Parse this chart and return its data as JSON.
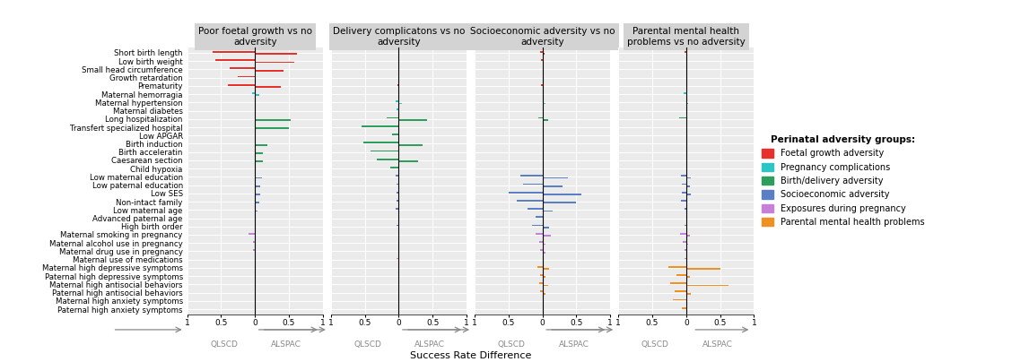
{
  "y_labels": [
    "Short birth length",
    "Low birth weight",
    "Small head circumference",
    "Growth retardation",
    "Prematurity",
    "Maternal hemorragia",
    "Maternal hypertension",
    "Maternal diabetes",
    "Long hospitalization",
    "Transfert specialized hospital",
    "Low APGAR",
    "Birth induction",
    "Birth acceleratin",
    "Caesarean section",
    "Child hypoxia",
    "Low maternal education",
    "Low paternal education",
    "Low SES",
    "Non-intact family",
    "Low maternal age",
    "Advanced paternal age",
    "High birth order",
    "Maternal smoking in pregnancy",
    "Maternal alcohol use in pregnancy",
    "Maternal drug use in pregnancy",
    "Maternal use of medications",
    "Maternal high depressive symptoms",
    "Paternal high depressive symptoms",
    "Maternal high antisocial behaviors",
    "Paternal high antisocial behaviors",
    "Maternal high anxiety symptoms",
    "Paternal high anxiety symptoms"
  ],
  "panel_titles": [
    "Poor foetal growth vs no\nadversity",
    "Delivery complicatons vs no\nadversity",
    "Socioeconomic adversity vs no\nadversity",
    "Parental mental health\nproblems vs no adversity"
  ],
  "colors": {
    "foetal": "#E8312A",
    "pregnancy": "#2BC5C5",
    "birth": "#2D9E5B",
    "socio": "#5B7FC4",
    "exposure": "#C87FD8",
    "parental": "#F09020"
  },
  "group_assignment": [
    "foetal",
    "foetal",
    "foetal",
    "foetal",
    "foetal",
    "pregnancy",
    "pregnancy",
    "pregnancy",
    "birth",
    "birth",
    "birth",
    "birth",
    "birth",
    "birth",
    "birth",
    "socio",
    "socio",
    "socio",
    "socio",
    "socio",
    "socio",
    "socio",
    "exposure",
    "exposure",
    "exposure",
    "exposure",
    "parental",
    "parental",
    "parental",
    "parental",
    "parental",
    "parental"
  ],
  "panel1": {
    "qlscd": [
      0.62,
      0.58,
      0.38,
      0.25,
      0.4,
      0.04,
      0.0,
      0.0,
      0.0,
      0.0,
      0.0,
      0.0,
      0.0,
      0.0,
      0.0,
      0.0,
      0.0,
      0.0,
      0.0,
      0.0,
      0.0,
      0.0,
      0.1,
      0.03,
      0.03,
      0.0,
      0.0,
      0.0,
      0.0,
      0.0,
      0.0,
      0.0
    ],
    "alspac": [
      0.62,
      0.58,
      0.42,
      0.0,
      0.38,
      0.06,
      0.0,
      0.0,
      0.52,
      0.5,
      0.0,
      0.18,
      0.12,
      0.12,
      0.0,
      0.1,
      0.08,
      0.08,
      0.06,
      0.04,
      0.0,
      0.0,
      0.0,
      0.0,
      0.0,
      0.0,
      0.0,
      0.0,
      0.0,
      0.0,
      0.0,
      0.0
    ]
  },
  "panel2": {
    "qlscd": [
      0.0,
      0.0,
      0.0,
      0.0,
      0.02,
      0.0,
      0.04,
      0.03,
      0.18,
      0.55,
      0.1,
      0.52,
      0.42,
      0.32,
      0.12,
      0.04,
      0.03,
      0.03,
      0.03,
      0.04,
      0.0,
      0.03,
      0.0,
      0.0,
      0.0,
      0.03,
      0.0,
      0.0,
      0.0,
      0.0,
      0.0,
      0.0
    ],
    "alspac": [
      0.0,
      0.0,
      0.0,
      0.0,
      0.0,
      0.0,
      0.05,
      0.0,
      0.42,
      0.0,
      0.0,
      0.35,
      0.0,
      0.28,
      0.0,
      0.0,
      0.0,
      0.0,
      0.0,
      0.0,
      0.0,
      0.0,
      0.0,
      0.0,
      0.0,
      0.0,
      0.0,
      0.0,
      0.0,
      0.0,
      0.0,
      0.0
    ]
  },
  "panel3": {
    "qlscd": [
      0.03,
      0.02,
      0.0,
      0.0,
      0.02,
      0.0,
      0.0,
      0.0,
      0.06,
      0.0,
      0.0,
      0.0,
      0.0,
      0.0,
      0.0,
      0.32,
      0.28,
      0.5,
      0.38,
      0.22,
      0.1,
      0.15,
      0.1,
      0.05,
      0.04,
      0.0,
      0.07,
      0.03,
      0.05,
      0.03,
      0.0,
      0.0
    ],
    "alspac": [
      0.03,
      0.02,
      0.0,
      0.0,
      0.02,
      0.0,
      0.05,
      0.0,
      0.08,
      0.0,
      0.0,
      0.0,
      0.0,
      0.0,
      0.0,
      0.38,
      0.3,
      0.58,
      0.5,
      0.15,
      0.0,
      0.1,
      0.12,
      0.05,
      0.05,
      0.0,
      0.1,
      0.05,
      0.08,
      0.05,
      0.0,
      0.0
    ]
  },
  "panel4": {
    "qlscd": [
      0.03,
      0.0,
      0.0,
      0.0,
      0.0,
      0.04,
      0.0,
      0.0,
      0.1,
      0.0,
      0.0,
      0.0,
      0.0,
      0.0,
      0.0,
      0.08,
      0.06,
      0.07,
      0.08,
      0.03,
      0.0,
      0.03,
      0.09,
      0.05,
      0.03,
      0.02,
      0.26,
      0.14,
      0.24,
      0.17,
      0.2,
      0.07
    ],
    "alspac": [
      0.0,
      0.0,
      0.0,
      0.0,
      0.0,
      0.0,
      0.03,
      0.0,
      0.0,
      0.0,
      0.0,
      0.0,
      0.0,
      0.0,
      0.0,
      0.07,
      0.05,
      0.07,
      0.0,
      0.0,
      0.0,
      0.0,
      0.05,
      0.03,
      0.02,
      0.0,
      0.5,
      0.05,
      0.62,
      0.07,
      0.0,
      0.0
    ]
  },
  "xlim": [
    -1.0,
    1.0
  ],
  "xticks_left": [
    -1,
    -0.5,
    0
  ],
  "xticks_right": [
    0,
    0.5,
    1
  ],
  "xtick_labels_left": [
    "1",
    "0.5",
    "0"
  ],
  "xtick_labels_right": [
    "0",
    "0.5",
    "1"
  ],
  "xlabel": "Success Rate Difference",
  "panel_bg": "#EBEBEB",
  "grid_color": "#FFFFFF",
  "bar_height": 0.38,
  "bar_sep": 0.13
}
